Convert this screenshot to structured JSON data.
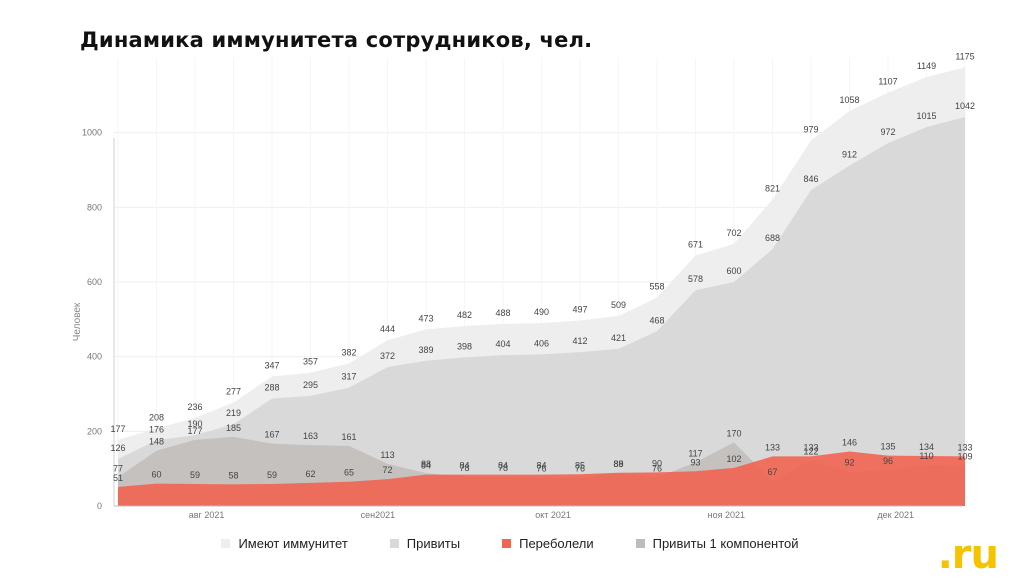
{
  "title": "Динамика иммунитета сотрудников, чел.",
  "logo": ".ru",
  "legend": [
    {
      "label": "Имеют иммунитет",
      "color": "#eeeeee"
    },
    {
      "label": "Привиты",
      "color": "#d9d9d9"
    },
    {
      "label": "Переболели",
      "color": "#f26451"
    },
    {
      "label": "Привиты 1 компонентой",
      "color": "#bfbcb8"
    }
  ],
  "chart_data": {
    "type": "area",
    "ylabel": "Человек",
    "ylim": [
      0,
      1200
    ],
    "yticks": [
      0,
      200,
      400,
      600,
      800,
      1000
    ],
    "xtick_labels": [
      "авг 2021",
      "сен2021",
      "окт 2021",
      "ноя 2021",
      "дек 2021"
    ],
    "series": [
      {
        "name": "Имеют иммунитет",
        "color": "#eeeeee",
        "values": [
          177,
          208,
          236,
          277,
          347,
          357,
          382,
          444,
          473,
          482,
          488,
          490,
          497,
          509,
          558,
          671,
          702,
          821,
          979,
          1058,
          1107,
          1149,
          1175
        ]
      },
      {
        "name": "Привиты",
        "color": "#d9d9d9",
        "values": [
          126,
          176,
          190,
          219,
          288,
          295,
          317,
          372,
          389,
          398,
          404,
          406,
          412,
          421,
          468,
          578,
          600,
          688,
          846,
          912,
          972,
          1015,
          1042
        ]
      },
      {
        "name": "Привиты 1 компонентой",
        "color": "#bfbcb8",
        "values": [
          77,
          148,
          177,
          185,
          167,
          163,
          161,
          113,
          88,
          78,
          78,
          76,
          76,
          88,
          76,
          117,
          170,
          67,
          122,
          92,
          96,
          110,
          109
        ]
      },
      {
        "name": "Переболели",
        "color": "#f26451",
        "values": [
          51,
          60,
          59,
          58,
          59,
          62,
          65,
          72,
          84,
          84,
          84,
          84,
          85,
          89,
          90,
          93,
          102,
          133,
          133,
          146,
          135,
          134,
          133
        ]
      }
    ]
  }
}
